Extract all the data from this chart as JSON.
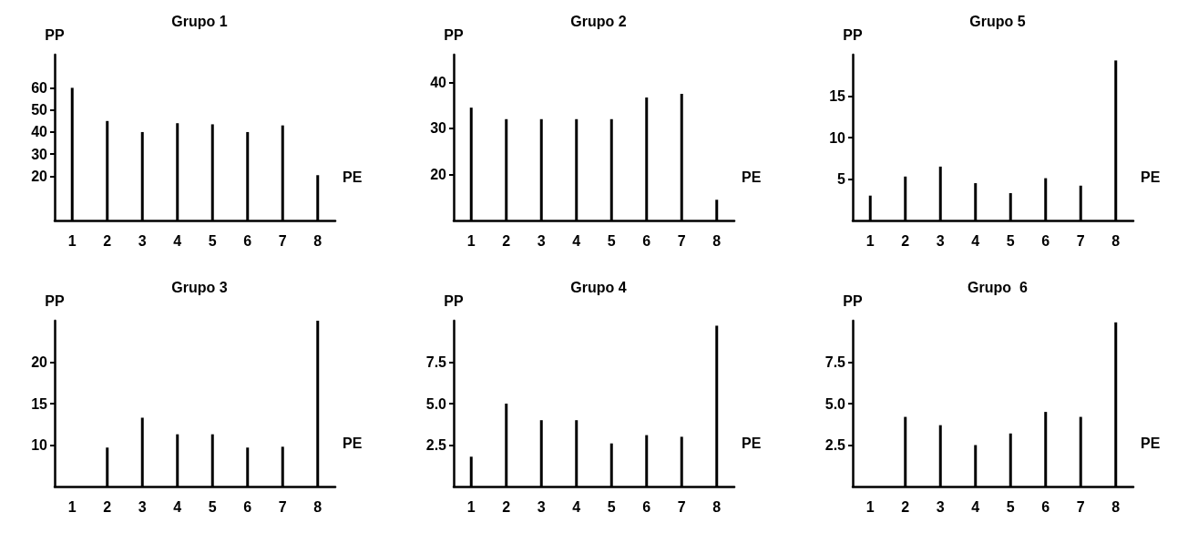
{
  "chart_data": [
    {
      "type": "bar",
      "title": "Grupo 1",
      "xlabel": "PE",
      "ylabel": "PP",
      "categories": [
        "1",
        "2",
        "3",
        "4",
        "5",
        "6",
        "7",
        "8"
      ],
      "values": [
        60,
        45,
        40,
        44,
        43.5,
        40,
        43,
        20.5
      ],
      "color": "#000000",
      "ylim": [
        0,
        75
      ],
      "yticks": [
        20,
        30,
        40,
        50,
        60
      ]
    },
    {
      "type": "bar",
      "title": "Grupo 2",
      "xlabel": "PE",
      "ylabel": "PP",
      "categories": [
        "1",
        "2",
        "3",
        "4",
        "5",
        "6",
        "7",
        "8"
      ],
      "values": [
        34.5,
        32,
        32,
        32,
        32,
        36.7,
        37.5,
        14.5
      ],
      "color": "#000000",
      "ylim": [
        10,
        46
      ],
      "yticks": [
        20,
        30,
        40
      ]
    },
    {
      "type": "bar",
      "title": "Grupo 5",
      "xlabel": "PE",
      "ylabel": "PP",
      "categories": [
        "1",
        "2",
        "3",
        "4",
        "5",
        "6",
        "7",
        "8"
      ],
      "values": [
        3,
        5.3,
        6.5,
        4.5,
        3.3,
        5.1,
        4.2,
        19.3
      ],
      "color": "#000000",
      "ylim": [
        0,
        20
      ],
      "yticks": [
        5,
        10,
        15
      ]
    },
    {
      "type": "bar",
      "title": "Grupo 3",
      "xlabel": "PE",
      "ylabel": "PP",
      "categories": [
        "1",
        "2",
        "3",
        "4",
        "5",
        "6",
        "7",
        "8"
      ],
      "values": [
        null,
        9.7,
        13.3,
        11.3,
        11.3,
        9.7,
        9.8,
        25
      ],
      "color": "#000000",
      "ylim": [
        5,
        25
      ],
      "yticks": [
        10,
        15,
        20
      ]
    },
    {
      "type": "bar",
      "title": "Grupo 4",
      "xlabel": "PE",
      "ylabel": "PP",
      "categories": [
        "1",
        "2",
        "3",
        "4",
        "5",
        "6",
        "7",
        "8"
      ],
      "values": [
        1.8,
        5,
        4,
        4,
        2.6,
        3.1,
        3,
        9.7
      ],
      "color": "#000000",
      "ylim": [
        0,
        10
      ],
      "yticks": [
        2.5,
        {
          "value": 5,
          "label": "5.0"
        },
        7.5
      ]
    },
    {
      "type": "bar",
      "title": "Grupo  6",
      "xlabel": "PE",
      "ylabel": "PP",
      "categories": [
        "1",
        "2",
        "3",
        "4",
        "5",
        "6",
        "7",
        "8"
      ],
      "values": [
        null,
        4.2,
        3.7,
        2.5,
        3.2,
        4.5,
        4.2,
        9.9
      ],
      "color": "#000000",
      "ylim": [
        0,
        10
      ],
      "yticks": [
        2.5,
        {
          "value": 5,
          "label": "5.0"
        },
        7.5
      ]
    }
  ]
}
